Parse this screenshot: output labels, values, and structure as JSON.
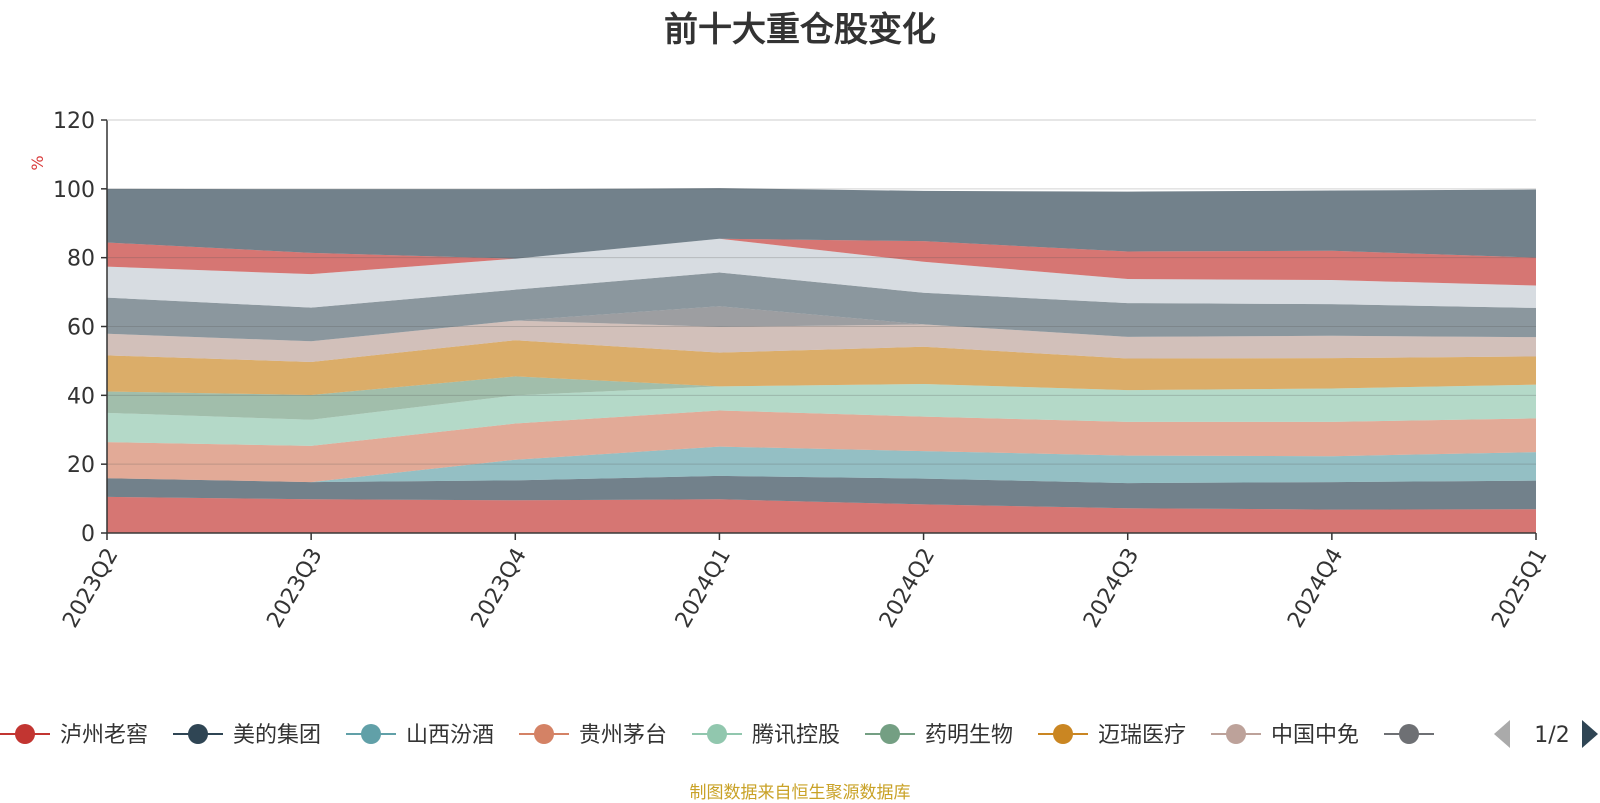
{
  "chart_data": {
    "type": "area",
    "title": "前十大重仓股变化",
    "ylabel": "%",
    "ylim": [
      0,
      120
    ],
    "yticks": [
      0,
      20,
      40,
      60,
      80,
      100,
      120
    ],
    "grid": true,
    "stacked": true,
    "categories": [
      "2023Q2",
      "2023Q3",
      "2023Q4",
      "2024Q1",
      "2024Q2",
      "2024Q3",
      "2024Q4",
      "2025Q1"
    ],
    "series": [
      {
        "name": "泸州老窖",
        "color": "#c23531",
        "values": [
          10.5,
          9.8,
          9.5,
          9.8,
          8.3,
          7.2,
          6.8,
          6.9
        ]
      },
      {
        "name": "美的集团",
        "color": "#2f4554",
        "values": [
          5.4,
          5.0,
          5.8,
          6.8,
          7.5,
          7.3,
          8.0,
          8.3
        ]
      },
      {
        "name": "山西汾酒",
        "color": "#61a0a8",
        "values": [
          0,
          0,
          6.0,
          8.5,
          8.0,
          8.0,
          7.5,
          8.3
        ]
      },
      {
        "name": "贵州茅台",
        "color": "#d48265",
        "values": [
          10.5,
          10.5,
          10.5,
          10.5,
          10.0,
          9.8,
          10.0,
          9.8
        ]
      },
      {
        "name": "腾讯控股",
        "color": "#91c7ae",
        "values": [
          8.5,
          7.6,
          8.2,
          7.0,
          9.5,
          9.2,
          9.7,
          9.8
        ]
      },
      {
        "name": "药明生物",
        "color": "#749f83",
        "values": [
          6.2,
          7.2,
          5.5,
          0,
          0,
          0,
          0,
          0
        ]
      },
      {
        "name": "迈瑞医疗",
        "color": "#ca8622",
        "values": [
          10.5,
          9.6,
          10.5,
          9.8,
          10.8,
          9.2,
          8.8,
          8.2
        ]
      },
      {
        "name": "中国中免",
        "color": "#bda29a",
        "values": [
          6.3,
          6.0,
          5.7,
          7.5,
          6.5,
          6.3,
          6.5,
          5.6
        ]
      },
      {
        "name": "",
        "color": "#6e7074",
        "values": [
          0,
          0,
          0,
          6.0,
          0,
          0,
          0,
          0
        ]
      },
      {
        "name": "",
        "color": "#546570",
        "values": [
          10.5,
          9.8,
          9.0,
          9.8,
          9.2,
          9.8,
          9.2,
          8.5
        ]
      },
      {
        "name": "",
        "color": "#c4ccd3",
        "values": [
          9.0,
          9.7,
          9.0,
          9.8,
          9.0,
          7.0,
          7.0,
          6.5
        ]
      },
      {
        "name": "",
        "color": "#c23531",
        "values": [
          7.0,
          6.2,
          0,
          0,
          6.0,
          8.0,
          8.5,
          8.1
        ]
      },
      {
        "name": "",
        "color": "#2f4554",
        "values": [
          15.6,
          18.5,
          20.2,
          14.7,
          14.6,
          17.4,
          17.5,
          19.8
        ]
      }
    ]
  },
  "legend": {
    "items": [
      {
        "label": "泸州老窖",
        "color": "#c23531"
      },
      {
        "label": "美的集团",
        "color": "#2f4554"
      },
      {
        "label": "山西汾酒",
        "color": "#61a0a8"
      },
      {
        "label": "贵州茅台",
        "color": "#d48265"
      },
      {
        "label": "腾讯控股",
        "color": "#91c7ae"
      },
      {
        "label": "药明生物",
        "color": "#749f83"
      },
      {
        "label": "迈瑞医疗",
        "color": "#ca8622"
      },
      {
        "label": "中国中免",
        "color": "#bda29a"
      },
      {
        "label": "",
        "color": "#6e7074"
      }
    ],
    "pager": "1/2"
  },
  "source_note": "制图数据来自恒生聚源数据库"
}
